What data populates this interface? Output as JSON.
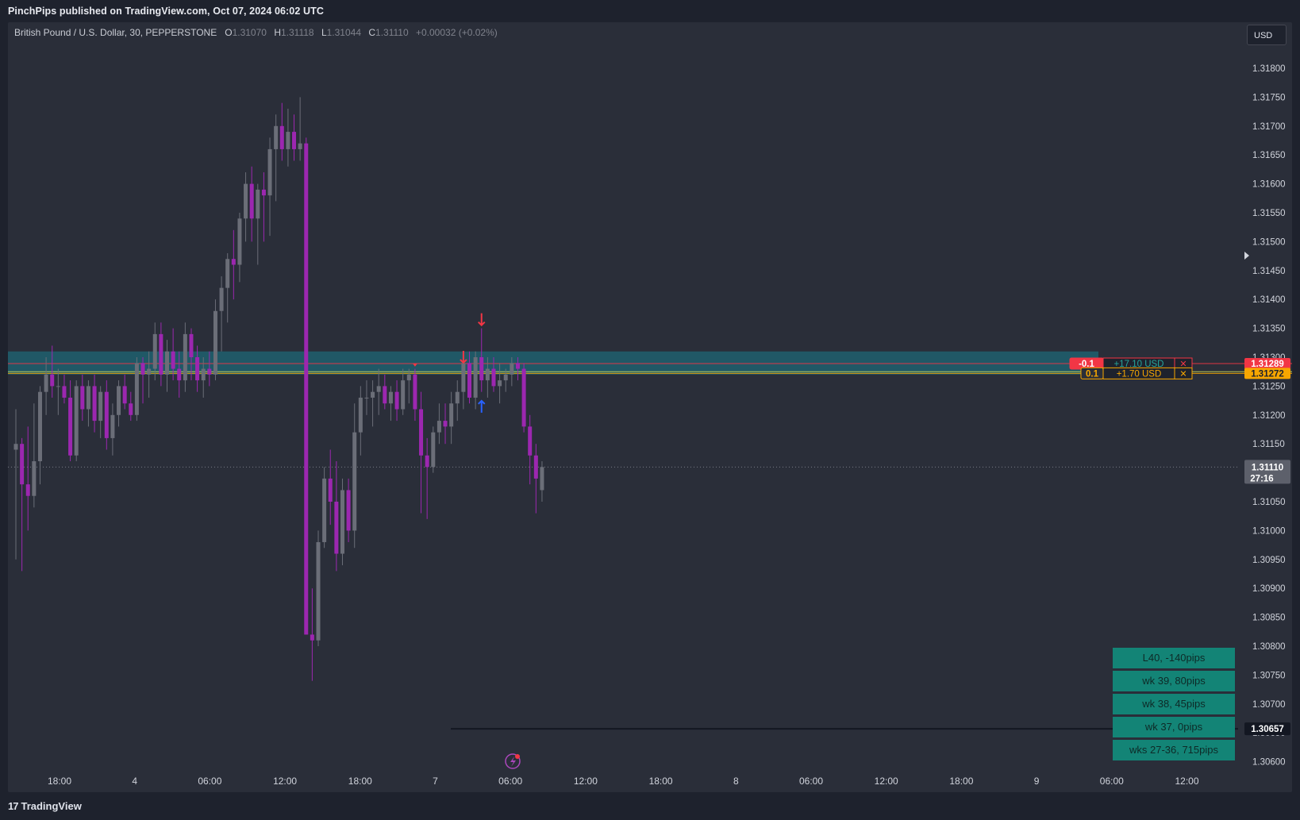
{
  "header": {
    "published": "PinchPips published on TradingView.com, Oct 07, 2024 06:02 UTC"
  },
  "legend": {
    "symbol": "British Pound / U.S. Dollar, 30, PEPPERSTONE",
    "open_label": "O",
    "open": "1.31070",
    "high_label": "H",
    "high": "1.31118",
    "low_label": "L",
    "low": "1.31044",
    "close_label": "C",
    "close": "1.31110",
    "change": "+0.00032 (+0.02%)"
  },
  "currency_button": "USD",
  "footer": {
    "logo_mark": "17",
    "logo_text": "TradingView"
  },
  "stats_table": [
    "L40, -140pips",
    "wk 39, 80pips",
    "wk 38, 45pips",
    "wk 37, 0pips",
    "wks 27-36, 715pips"
  ],
  "positions": [
    {
      "qty": "-0.1",
      "pnl": "+17.10 USD",
      "price_label": "1.31289",
      "color": "#f23645",
      "close": "✕"
    },
    {
      "qty": "0.1",
      "pnl": "+1.70 USD",
      "price_label": "1.31272",
      "color": "#f7a600",
      "close": "✕"
    }
  ],
  "price_labels": {
    "last": "1.31110",
    "countdown": "27:16",
    "low_line": "1.30657"
  },
  "colors": {
    "background": "#2a2e39",
    "bull_candle": "#6b6e78",
    "bear_candle": "#9c27b0",
    "zone": "#1f5f6e",
    "sell_arrow": "#f23645",
    "buy_arrow": "#2962ff",
    "stats_bg": "#138476"
  },
  "chart_data": {
    "type": "candlestick",
    "symbol": "GBPUSD",
    "timeframe": "30",
    "ylim": [
      1.3059,
      1.3185
    ],
    "y_ticks": [
      "1.31800",
      "1.31750",
      "1.31700",
      "1.31650",
      "1.31600",
      "1.31550",
      "1.31500",
      "1.31450",
      "1.31400",
      "1.31350",
      "1.31300",
      "1.31250",
      "1.31200",
      "1.31150",
      "1.31100",
      "1.31050",
      "1.31000",
      "1.30950",
      "1.30900",
      "1.30850",
      "1.30800",
      "1.30750",
      "1.30700",
      "1.30650",
      "1.30600"
    ],
    "x_ticks": [
      "18:00",
      "4",
      "06:00",
      "12:00",
      "18:00",
      "7",
      "06:00",
      "12:00",
      "18:00",
      "8",
      "06:00",
      "12:00",
      "18:00",
      "9",
      "06:00",
      "12:00"
    ],
    "zone": {
      "from": 1.3127,
      "to": 1.3131
    },
    "horizontal_lines": [
      {
        "price": 1.31289,
        "color": "#f23645"
      },
      {
        "price": 1.31272,
        "color": "#f7a600"
      },
      {
        "price": 1.31275,
        "color": "#c5d55a"
      }
    ],
    "current_price": 1.3111,
    "low_line_price": 1.30657,
    "candles": [
      [
        1.3114,
        1.3121,
        1.3095,
        1.3115
      ],
      [
        1.3115,
        1.3116,
        1.3093,
        1.3108
      ],
      [
        1.3108,
        1.3118,
        1.31,
        1.3106
      ],
      [
        1.3106,
        1.3122,
        1.3104,
        1.3112
      ],
      [
        1.3112,
        1.3125,
        1.3108,
        1.3124
      ],
      [
        1.3124,
        1.313,
        1.312,
        1.3127
      ],
      [
        1.3127,
        1.3132,
        1.3123,
        1.3125
      ],
      [
        1.3125,
        1.3128,
        1.312,
        1.3125
      ],
      [
        1.3125,
        1.3127,
        1.3122,
        1.3123
      ],
      [
        1.3123,
        1.3126,
        1.3112,
        1.3113
      ],
      [
        1.3113,
        1.3126,
        1.3112,
        1.3125
      ],
      [
        1.3125,
        1.3127,
        1.3119,
        1.3121
      ],
      [
        1.3121,
        1.3126,
        1.3118,
        1.3125
      ],
      [
        1.3125,
        1.3127,
        1.3117,
        1.3119
      ],
      [
        1.3119,
        1.3125,
        1.3116,
        1.3124
      ],
      [
        1.3124,
        1.3126,
        1.3114,
        1.3116
      ],
      [
        1.3116,
        1.3122,
        1.3113,
        1.312
      ],
      [
        1.312,
        1.3126,
        1.3118,
        1.3125
      ],
      [
        1.3125,
        1.3127,
        1.3121,
        1.3122
      ],
      [
        1.3122,
        1.3124,
        1.3119,
        1.312
      ],
      [
        1.312,
        1.313,
        1.3119,
        1.3129
      ],
      [
        1.3129,
        1.313,
        1.3122,
        1.3127
      ],
      [
        1.3127,
        1.3131,
        1.3123,
        1.3128
      ],
      [
        1.3128,
        1.3136,
        1.3126,
        1.3134
      ],
      [
        1.3134,
        1.3136,
        1.3125,
        1.3127
      ],
      [
        1.3127,
        1.3133,
        1.3124,
        1.3131
      ],
      [
        1.3131,
        1.3135,
        1.3126,
        1.3128
      ],
      [
        1.3128,
        1.3131,
        1.3123,
        1.3126
      ],
      [
        1.3126,
        1.3136,
        1.3124,
        1.3134
      ],
      [
        1.3134,
        1.3135,
        1.3126,
        1.313
      ],
      [
        1.313,
        1.3132,
        1.3124,
        1.3126
      ],
      [
        1.3126,
        1.313,
        1.3123,
        1.3128
      ],
      [
        1.3128,
        1.3131,
        1.3125,
        1.3127
      ],
      [
        1.3127,
        1.314,
        1.3126,
        1.3138
      ],
      [
        1.3138,
        1.3144,
        1.3131,
        1.3142
      ],
      [
        1.3142,
        1.3148,
        1.3136,
        1.3147
      ],
      [
        1.3147,
        1.3152,
        1.314,
        1.3146
      ],
      [
        1.3146,
        1.3155,
        1.3143,
        1.3154
      ],
      [
        1.3154,
        1.3162,
        1.315,
        1.316
      ],
      [
        1.316,
        1.3163,
        1.315,
        1.3154
      ],
      [
        1.3154,
        1.316,
        1.3146,
        1.3159
      ],
      [
        1.3159,
        1.3162,
        1.315,
        1.3158
      ],
      [
        1.3158,
        1.3168,
        1.3151,
        1.3166
      ],
      [
        1.3166,
        1.3172,
        1.3157,
        1.317
      ],
      [
        1.317,
        1.3174,
        1.3164,
        1.3166
      ],
      [
        1.3166,
        1.3173,
        1.3163,
        1.3169
      ],
      [
        1.3169,
        1.3172,
        1.3164,
        1.3166
      ],
      [
        1.3166,
        1.3175,
        1.3164,
        1.3167
      ],
      [
        1.3167,
        1.3168,
        1.3082,
        1.3082
      ],
      [
        1.3082,
        1.309,
        1.3074,
        1.3081
      ],
      [
        1.3081,
        1.31,
        1.308,
        1.3098
      ],
      [
        1.3098,
        1.3111,
        1.3097,
        1.3109
      ],
      [
        1.3109,
        1.3114,
        1.3101,
        1.3105
      ],
      [
        1.3105,
        1.3112,
        1.3093,
        1.3096
      ],
      [
        1.3096,
        1.3109,
        1.3094,
        1.3107
      ],
      [
        1.3107,
        1.3109,
        1.3098,
        1.31
      ],
      [
        1.31,
        1.3122,
        1.3097,
        1.3117
      ],
      [
        1.3117,
        1.3125,
        1.3113,
        1.3123
      ],
      [
        1.3123,
        1.3126,
        1.312,
        1.3123
      ],
      [
        1.3123,
        1.3126,
        1.3118,
        1.3124
      ],
      [
        1.3124,
        1.3128,
        1.312,
        1.3125
      ],
      [
        1.3125,
        1.3127,
        1.3121,
        1.3122
      ],
      [
        1.3122,
        1.3125,
        1.3119,
        1.3124
      ],
      [
        1.3124,
        1.3126,
        1.3119,
        1.3121
      ],
      [
        1.3121,
        1.3128,
        1.312,
        1.3126
      ],
      [
        1.3126,
        1.3128,
        1.3122,
        1.3127
      ],
      [
        1.3127,
        1.3128,
        1.3119,
        1.3121
      ],
      [
        1.3121,
        1.3124,
        1.3103,
        1.3113
      ],
      [
        1.3113,
        1.3116,
        1.3102,
        1.3111
      ],
      [
        1.3111,
        1.3118,
        1.311,
        1.3117
      ],
      [
        1.3117,
        1.3122,
        1.3115,
        1.3119
      ],
      [
        1.3119,
        1.3122,
        1.3115,
        1.3118
      ],
      [
        1.3118,
        1.3124,
        1.3115,
        1.3122
      ],
      [
        1.3122,
        1.3126,
        1.3119,
        1.3124
      ],
      [
        1.3124,
        1.313,
        1.3121,
        1.3129
      ],
      [
        1.3129,
        1.3131,
        1.3122,
        1.3123
      ],
      [
        1.3123,
        1.3131,
        1.3121,
        1.313
      ],
      [
        1.313,
        1.3135,
        1.3124,
        1.3126
      ],
      [
        1.3126,
        1.313,
        1.3123,
        1.3128
      ],
      [
        1.3128,
        1.313,
        1.3124,
        1.3125
      ],
      [
        1.3125,
        1.3129,
        1.3122,
        1.3126
      ],
      [
        1.3126,
        1.3128,
        1.3124,
        1.3127
      ],
      [
        1.3127,
        1.313,
        1.3125,
        1.3129
      ],
      [
        1.3129,
        1.313,
        1.3126,
        1.3128
      ],
      [
        1.3128,
        1.3129,
        1.3117,
        1.3118
      ],
      [
        1.3118,
        1.312,
        1.3108,
        1.3113
      ],
      [
        1.3113,
        1.3115,
        1.3103,
        1.3109
      ],
      [
        1.3107,
        1.3112,
        1.3105,
        1.3111
      ]
    ],
    "markers": [
      {
        "index": 74,
        "type": "sell",
        "price": 1.313
      },
      {
        "index": 77,
        "type": "sell",
        "price": 1.31365
      },
      {
        "index": 77,
        "type": "buy",
        "price": 1.31215
      },
      {
        "index": 66,
        "type": "dot",
        "price": 1.31285
      }
    ]
  }
}
